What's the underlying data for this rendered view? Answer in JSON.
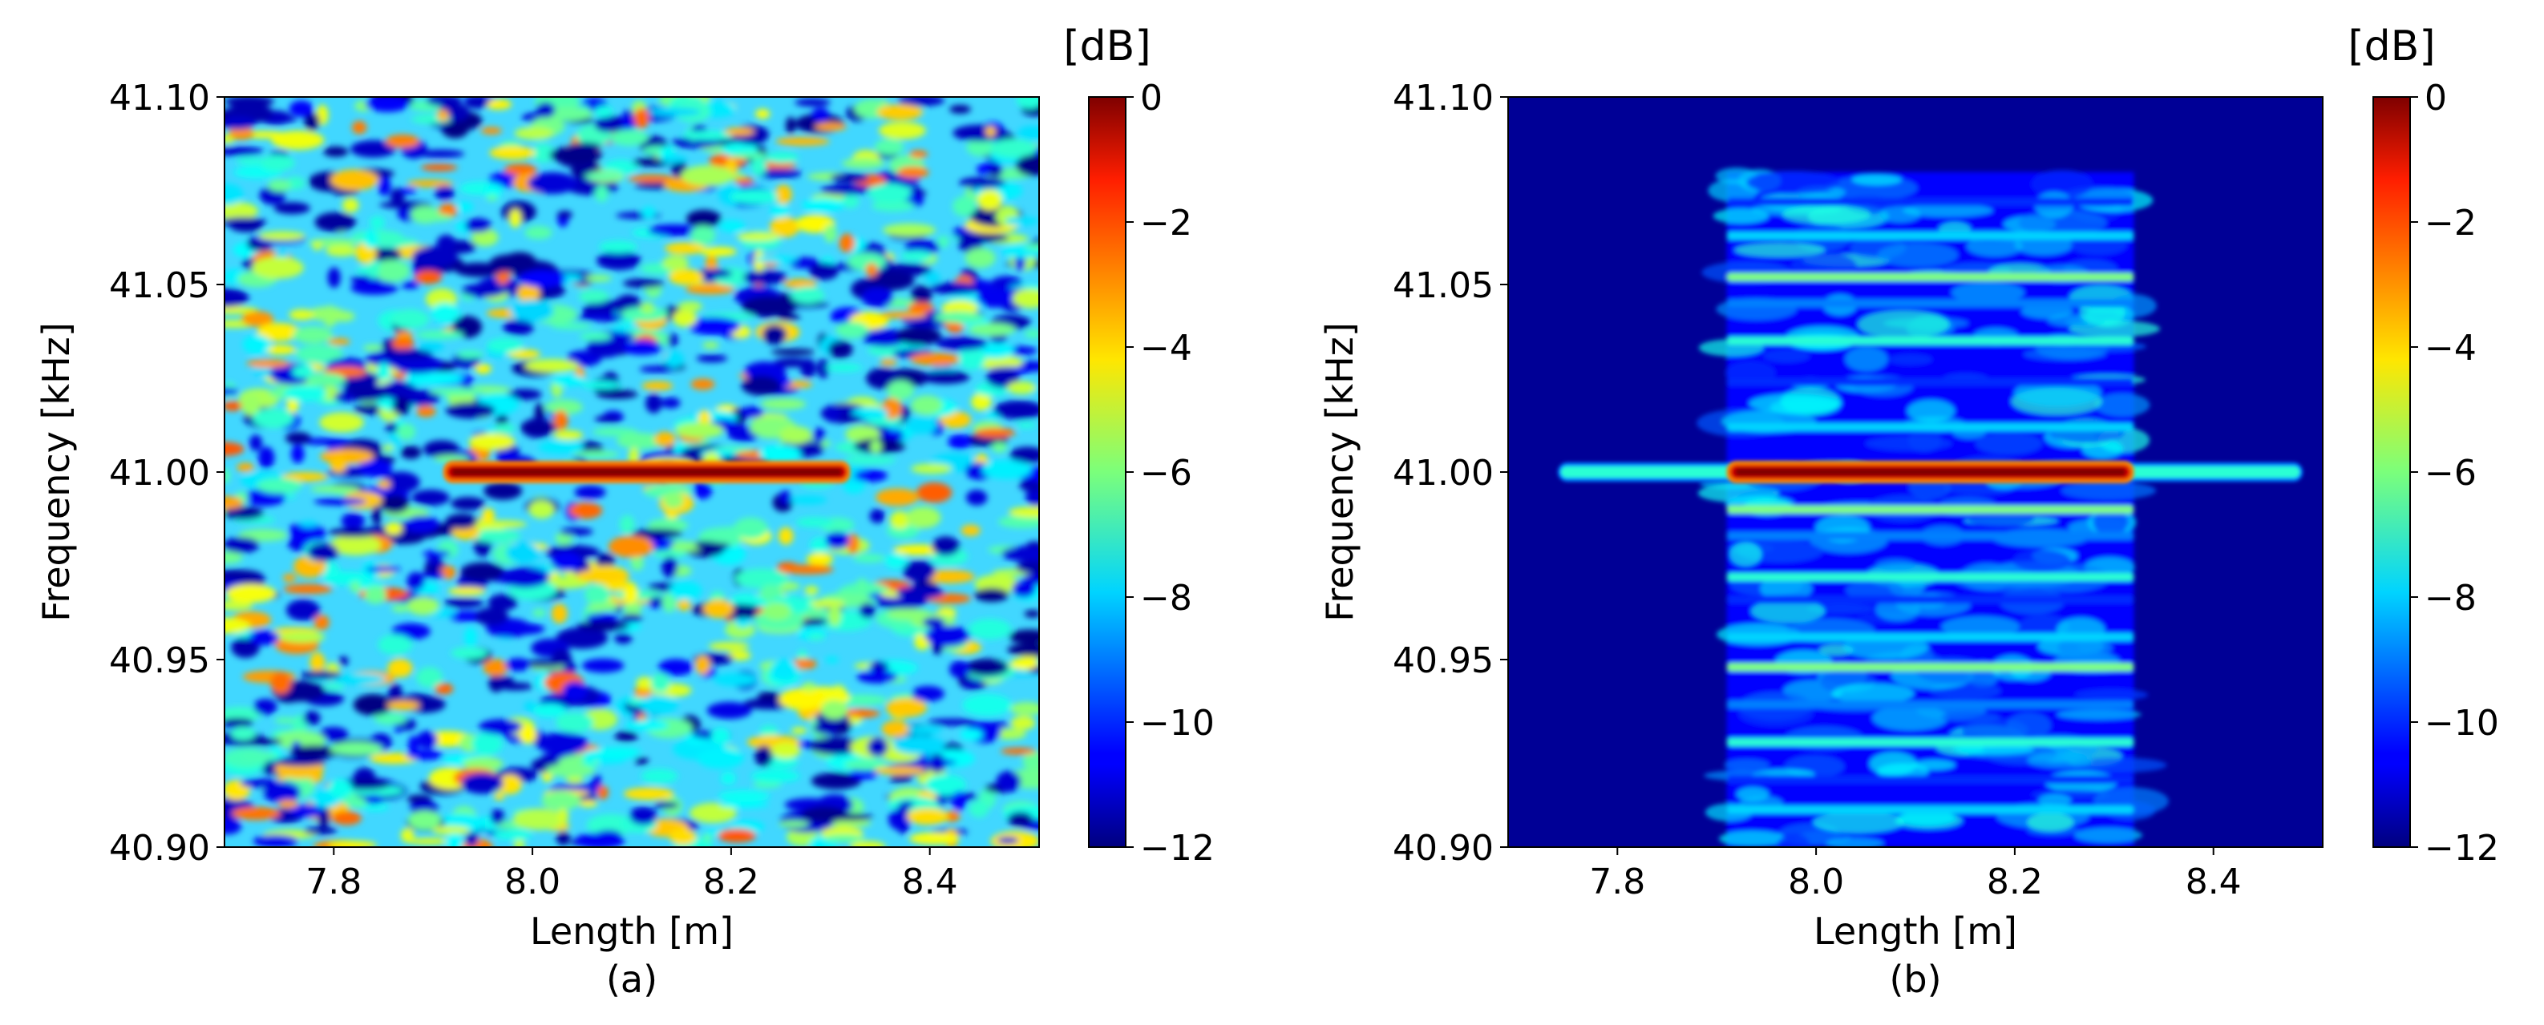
{
  "chart_data": [
    {
      "type": "heatmap",
      "caption": "(a)",
      "xlabel": "Length [m]",
      "ylabel": "Frequency [kHz]",
      "xlim": [
        7.69,
        8.51
      ],
      "ylim": [
        40.9,
        41.1
      ],
      "xticks": [
        7.8,
        8.0,
        8.2,
        8.4
      ],
      "xtick_labels": [
        "7.8",
        "8.0",
        "8.2",
        "8.4"
      ],
      "yticks": [
        40.9,
        40.95,
        41.0,
        41.05,
        41.1
      ],
      "ytick_labels": [
        "40.90",
        "40.95",
        "41.00",
        "41.05",
        "41.10"
      ],
      "colorbar": {
        "label": "[dB]",
        "colormap": "jet",
        "range": [
          -12,
          0
        ],
        "ticks": [
          0,
          -2,
          -4,
          -6,
          -8,
          -10,
          -12
        ],
        "tick_labels": [
          "0",
          "−2",
          "−4",
          "−6",
          "−8",
          "−10",
          "−12"
        ]
      },
      "features": [
        {
          "kind": "noise-floor",
          "level_range_db": [
            -12,
            -4
          ]
        },
        {
          "kind": "tone",
          "frequency": 41.0,
          "x_start": 7.91,
          "x_end": 8.32,
          "level_db": 0
        }
      ]
    },
    {
      "type": "heatmap",
      "caption": "(b)",
      "xlabel": "Length [m]",
      "ylabel": "Frequency [kHz]",
      "xlim": [
        7.69,
        8.51
      ],
      "ylim": [
        40.9,
        41.1
      ],
      "xticks": [
        7.8,
        8.0,
        8.2,
        8.4
      ],
      "xtick_labels": [
        "7.8",
        "8.0",
        "8.2",
        "8.4"
      ],
      "yticks": [
        40.9,
        40.95,
        41.0,
        41.05,
        41.1
      ],
      "ytick_labels": [
        "40.90",
        "40.95",
        "41.00",
        "41.05",
        "41.10"
      ],
      "colorbar": {
        "label": "[dB]",
        "colormap": "jet",
        "range": [
          -12,
          0
        ],
        "ticks": [
          0,
          -2,
          -4,
          -6,
          -8,
          -10,
          -12
        ],
        "tick_labels": [
          "0",
          "−2",
          "−4",
          "−6",
          "−8",
          "−10",
          "−12"
        ]
      },
      "features": [
        {
          "kind": "background",
          "level_db": -12
        },
        {
          "kind": "band-region",
          "x_start": 7.91,
          "x_end": 8.32,
          "frequency_range": [
            40.9,
            41.08
          ],
          "level_range_db": [
            -10,
            -7
          ]
        },
        {
          "kind": "tone",
          "frequency": 41.0,
          "x_start": 7.74,
          "x_end": 8.49,
          "level_db": -7
        },
        {
          "kind": "tone",
          "frequency": 41.0,
          "x_start": 7.91,
          "x_end": 8.32,
          "level_db": 0
        },
        {
          "kind": "stripes",
          "frequencies": [
            41.072,
            41.063,
            41.052,
            41.045,
            41.035,
            41.024,
            41.012,
            40.99,
            40.983,
            40.972,
            40.966,
            40.956,
            40.948,
            40.938,
            40.928,
            40.918,
            40.91
          ],
          "x_start": 7.91,
          "x_end": 8.32,
          "level_range_db": [
            -10,
            -6
          ]
        }
      ]
    }
  ]
}
